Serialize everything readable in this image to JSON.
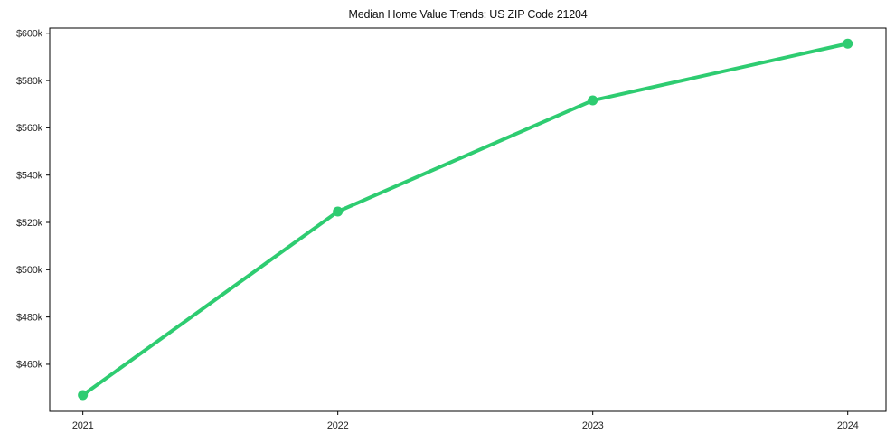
{
  "page": {
    "background_color": "#ffffff"
  },
  "chart_data": {
    "type": "line",
    "title": "Median Home Value Trends: US ZIP Code 21204",
    "series": [
      {
        "name": "median-home-value",
        "x": [
          2021,
          2022,
          2023,
          2024
        ],
        "values": [
          447000,
          524600,
          571600,
          595600
        ]
      }
    ],
    "xtick_values": [
      2021,
      2022,
      2023,
      2024
    ],
    "xtick_labels": [
      "2021",
      "2022",
      "2023",
      "2024"
    ],
    "ytick_values": [
      460000,
      480000,
      500000,
      520000,
      540000,
      560000,
      580000,
      600000
    ],
    "ytick_labels": [
      "$460k",
      "$480k",
      "$500k",
      "$520k",
      "$540k",
      "$560k",
      "$580k",
      "$600k"
    ],
    "xlim": [
      2020.87,
      2024.15
    ],
    "ylim": [
      440100,
      602200
    ],
    "xlabel": "",
    "ylabel": "",
    "grid": false,
    "legend": "none",
    "line_color": "#2ecc71",
    "marker_color": "#2ecc71",
    "line_width": 4,
    "marker_radius": 5.5,
    "axis_color": "#000000",
    "tick_label_color": "#262626"
  }
}
